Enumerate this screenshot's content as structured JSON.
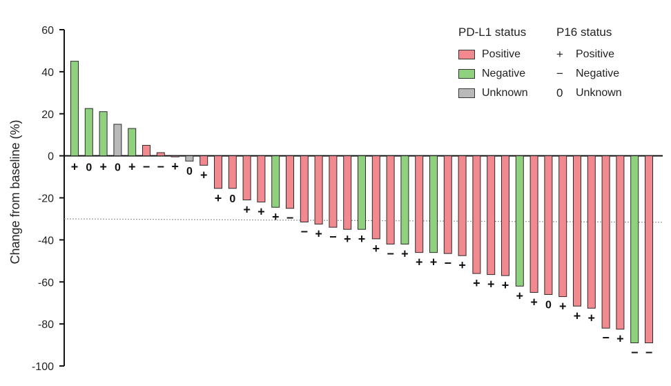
{
  "chart_data": {
    "type": "bar",
    "ylabel": "Change from baseline (%)",
    "xlabel": "",
    "ylim": [
      -100,
      60
    ],
    "yticks": [
      60,
      40,
      20,
      0,
      -20,
      -40,
      -60,
      -80,
      -100
    ],
    "reference_line": -30,
    "values": [
      45,
      22.5,
      21,
      15,
      13,
      5,
      1.5,
      -0.5,
      -2.5,
      -4.5,
      -15.5,
      -15.5,
      -21,
      -22,
      -24.5,
      -25,
      -31.5,
      -32.5,
      -34,
      -35,
      -35,
      -39.5,
      -42,
      -42,
      -46,
      -46,
      -46.5,
      -47.5,
      -56,
      -56.5,
      -57,
      -62,
      -65,
      -66,
      -67,
      -71.5,
      -72.5,
      -82,
      -82.5,
      -89,
      -89
    ],
    "pdl1_status": [
      "Negative",
      "Negative",
      "Negative",
      "Unknown",
      "Negative",
      "Positive",
      "Positive",
      "Positive",
      "Unknown",
      "Positive",
      "Positive",
      "Positive",
      "Positive",
      "Positive",
      "Negative",
      "Positive",
      "Positive",
      "Positive",
      "Positive",
      "Positive",
      "Negative",
      "Positive",
      "Positive",
      "Negative",
      "Positive",
      "Negative",
      "Positive",
      "Positive",
      "Positive",
      "Positive",
      "Positive",
      "Negative",
      "Positive",
      "Positive",
      "Positive",
      "Positive",
      "Positive",
      "Positive",
      "Positive",
      "Negative",
      "Positive"
    ],
    "p16_labels": [
      "+",
      "0",
      "+",
      "0",
      "+",
      "−",
      "−",
      "+",
      "0",
      "+",
      "+",
      "0",
      "+",
      "+",
      "+",
      "−",
      "−",
      "+",
      "−",
      "+",
      "+",
      "+",
      "−",
      "+",
      "+",
      "+",
      "−",
      "+",
      "+",
      "+",
      "+",
      "+",
      "+",
      "0",
      "+",
      "+",
      "+",
      "−",
      "+",
      "−",
      "−"
    ],
    "colors": {
      "Positive": "#f2898f",
      "Negative": "#8fd17f",
      "Unknown": "#b9b9b9"
    }
  },
  "legend": {
    "pdl1_title": "PD-L1 status",
    "pdl1_items": [
      {
        "label": "Positive",
        "color": "#f2898f"
      },
      {
        "label": "Negative",
        "color": "#8fd17f"
      },
      {
        "label": "Unknown",
        "color": "#b9b9b9"
      }
    ],
    "p16_title": "P16 status",
    "p16_items": [
      {
        "symbol": "+",
        "label": "Positive"
      },
      {
        "symbol": "−",
        "label": "Negative"
      },
      {
        "symbol": "0",
        "label": "Unknown"
      }
    ]
  }
}
